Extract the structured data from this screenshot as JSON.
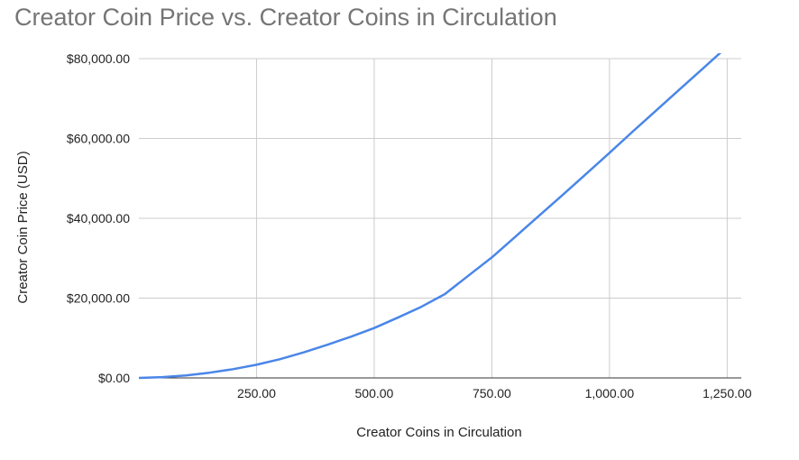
{
  "chart_data": {
    "type": "line",
    "title": "Creator Coin Price vs. Creator Coins in Circulation",
    "xlabel": "Creator Coins in Circulation",
    "ylabel": "Creator Coin Price (USD)",
    "xlim": [
      0,
      1280
    ],
    "ylim": [
      0,
      80000
    ],
    "x_ticks": [
      250,
      500,
      750,
      1000,
      1250
    ],
    "x_tick_labels": [
      "250.00",
      "500.00",
      "750.00",
      "1,000.00",
      "1,250.00"
    ],
    "y_ticks": [
      0,
      20000,
      40000,
      60000,
      80000
    ],
    "y_tick_labels": [
      "$0.00",
      "$20,000.00",
      "$40,000.00",
      "$60,000.00",
      "$80,000.00"
    ],
    "grid": true,
    "series": [
      {
        "color": "#4a86e8",
        "x": [
          0,
          50,
          100,
          150,
          200,
          250,
          300,
          350,
          400,
          450,
          500,
          550,
          600,
          650,
          700,
          750,
          800,
          850,
          900,
          950,
          1000,
          1050,
          1100,
          1150,
          1200,
          1250,
          1280
        ],
        "y": [
          0,
          200,
          600,
          1300,
          2200,
          3300,
          4700,
          6400,
          8300,
          10300,
          12500,
          15100,
          17800,
          21000,
          25600,
          30200,
          35400,
          40600,
          45800,
          51100,
          56400,
          61800,
          67100,
          72400,
          77700,
          83000,
          86200
        ]
      }
    ]
  }
}
